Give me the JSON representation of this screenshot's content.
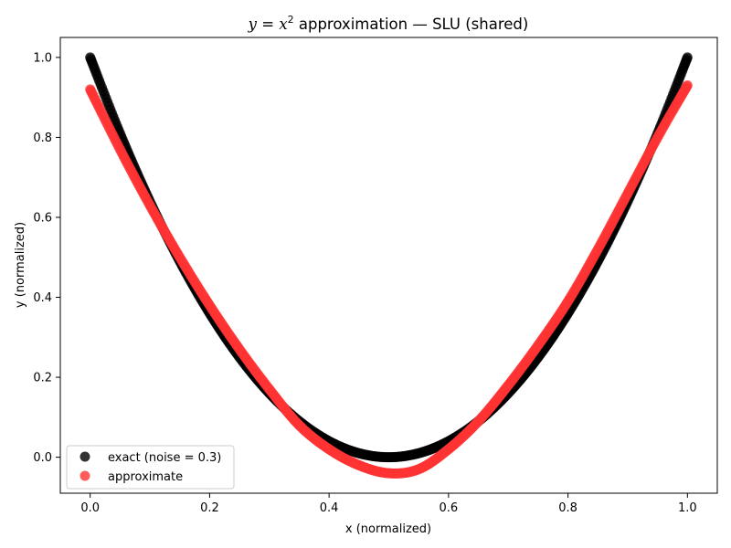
{
  "chart_data": {
    "type": "scatter",
    "title": {
      "math_y": "y",
      "math_eq": " = ",
      "math_x": "x",
      "math_exp": "2",
      "text": " approximation — SLU (shared)"
    },
    "xlabel": "x (normalized)",
    "ylabel": "y (normalized)",
    "xlim": [
      -0.05,
      1.05
    ],
    "ylim": [
      -0.09,
      1.05
    ],
    "xticks": [
      0.0,
      0.2,
      0.4,
      0.6,
      0.8,
      1.0
    ],
    "xtick_labels": [
      "0.0",
      "0.2",
      "0.4",
      "0.6",
      "0.8",
      "1.0"
    ],
    "yticks": [
      0.0,
      0.2,
      0.4,
      0.6,
      0.8,
      1.0
    ],
    "ytick_labels": [
      "0.0",
      "0.2",
      "0.4",
      "0.6",
      "0.8",
      "1.0"
    ],
    "grid": false,
    "legend_position": "lower-left",
    "series": [
      {
        "name": "exact (noise = 0.3)",
        "color": "#000000",
        "x": [
          0.0,
          0.05,
          0.1,
          0.15,
          0.2,
          0.25,
          0.3,
          0.35,
          0.4,
          0.45,
          0.5,
          0.55,
          0.6,
          0.65,
          0.7,
          0.75,
          0.8,
          0.85,
          0.9,
          0.95,
          1.0
        ],
        "y": [
          1.0,
          0.81,
          0.64,
          0.49,
          0.36,
          0.25,
          0.16,
          0.09,
          0.04,
          0.01,
          0.0,
          0.01,
          0.04,
          0.09,
          0.16,
          0.25,
          0.36,
          0.49,
          0.64,
          0.81,
          1.0
        ]
      },
      {
        "name": "approximate",
        "color": "#ff3333",
        "x": [
          0.0,
          0.05,
          0.1,
          0.15,
          0.2,
          0.25,
          0.3,
          0.35,
          0.4,
          0.45,
          0.5,
          0.55,
          0.6,
          0.65,
          0.7,
          0.75,
          0.8,
          0.85,
          0.9,
          0.95,
          1.0
        ],
        "y": [
          0.92,
          0.77,
          0.63,
          0.5,
          0.38,
          0.27,
          0.17,
          0.08,
          0.02,
          -0.02,
          -0.04,
          -0.03,
          0.02,
          0.09,
          0.18,
          0.28,
          0.39,
          0.52,
          0.66,
          0.8,
          0.93
        ]
      }
    ]
  }
}
